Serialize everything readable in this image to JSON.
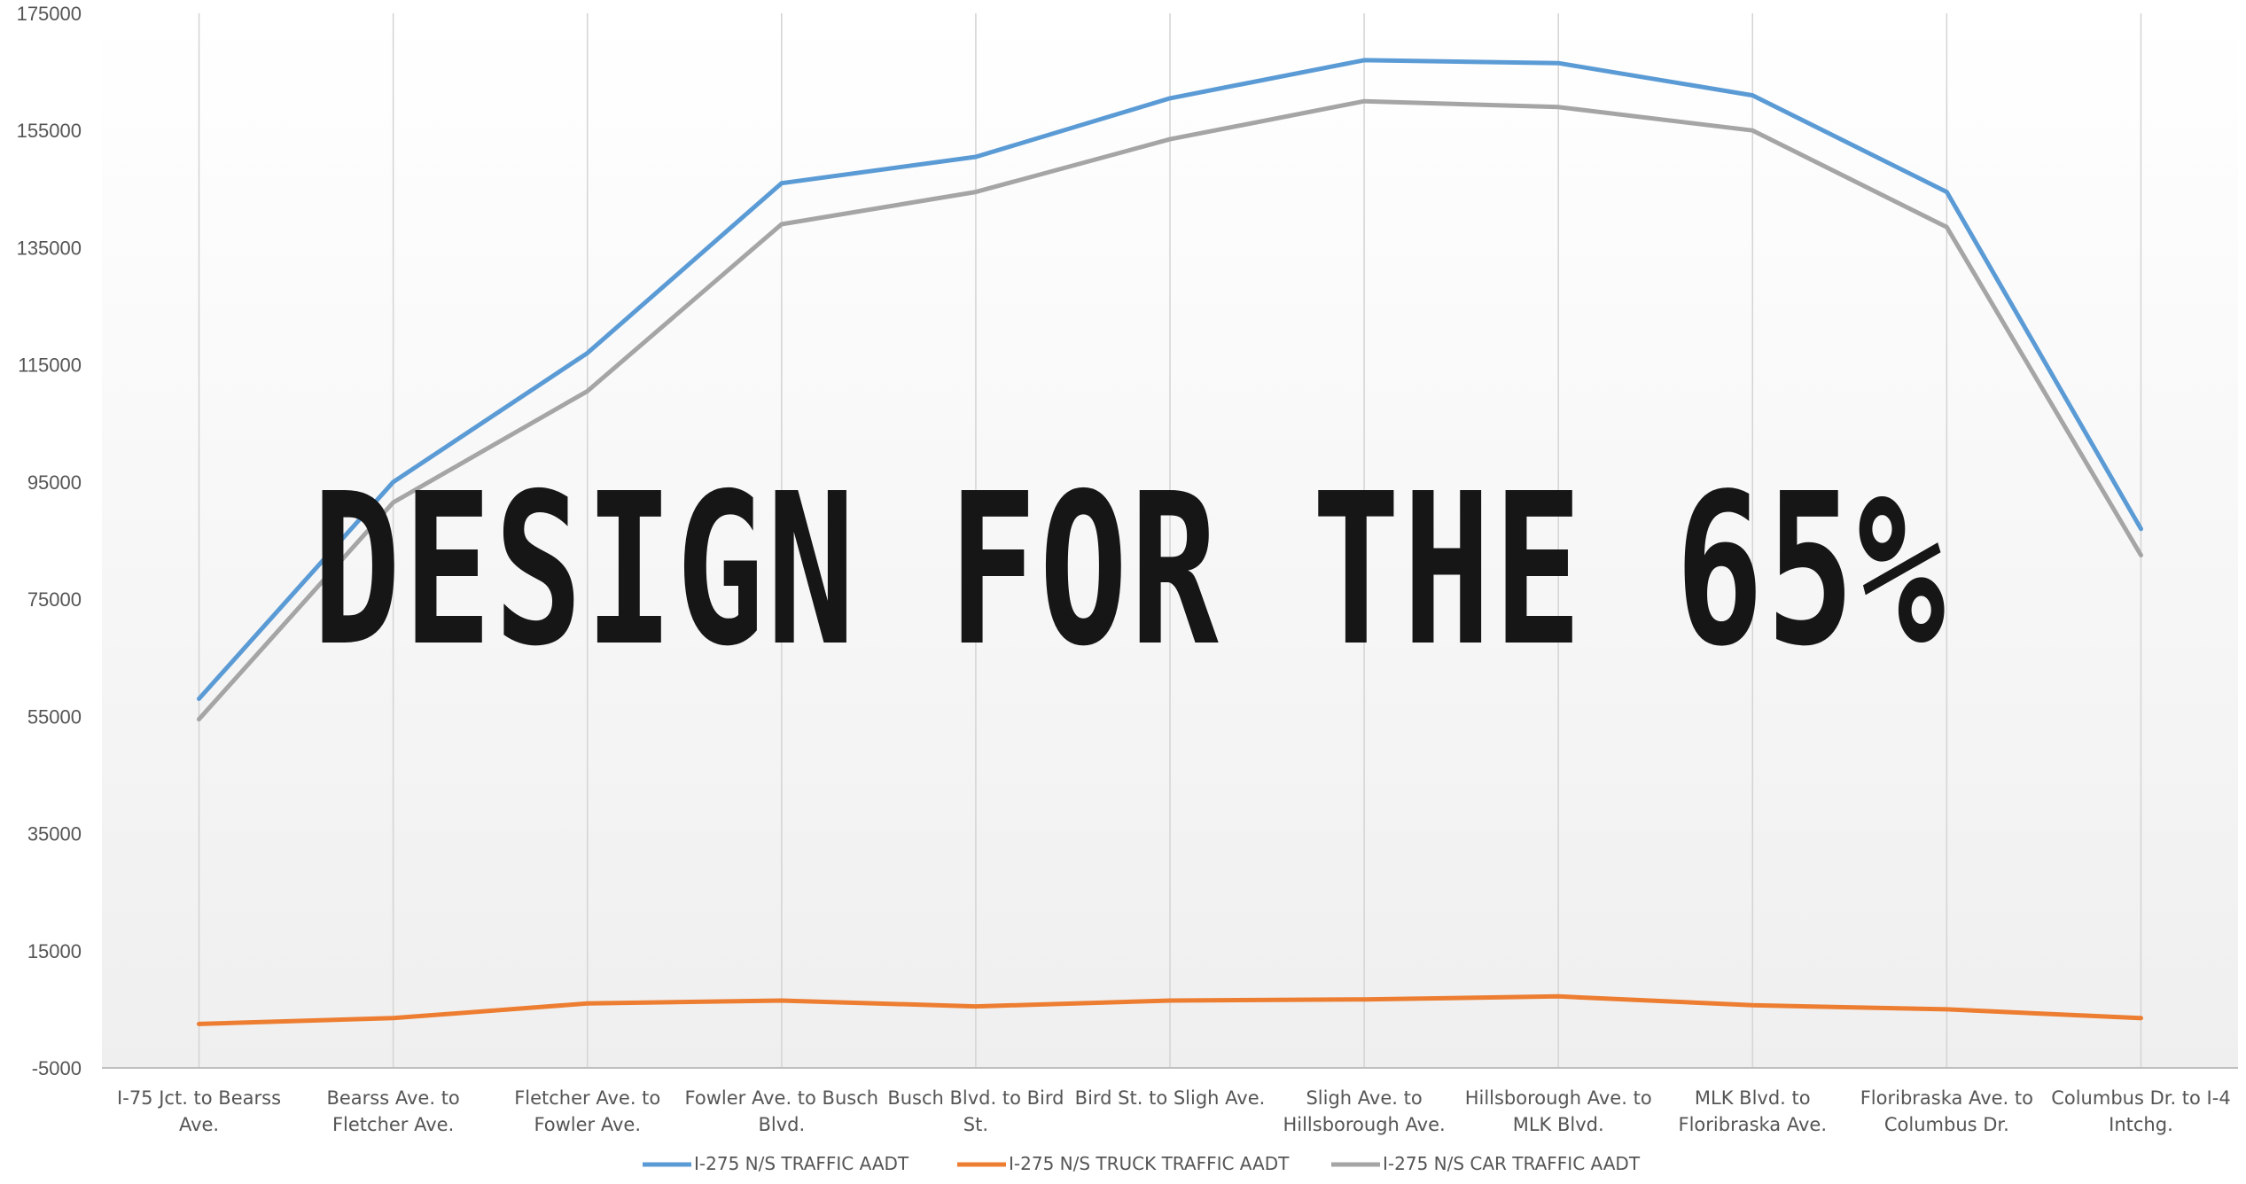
{
  "overlay": {
    "text": "DESIGN FOR THE 65%"
  },
  "chart_data": {
    "type": "line",
    "title": "",
    "xlabel": "",
    "ylabel": "",
    "ylim": [
      -5000,
      175000
    ],
    "yticks": [
      -5000,
      15000,
      35000,
      55000,
      75000,
      95000,
      115000,
      135000,
      155000,
      175000
    ],
    "grid": "vertical",
    "legend_position": "bottom",
    "categories": [
      [
        "I-75 Jct. to Bearss",
        "Ave."
      ],
      [
        "Bearss Ave. to",
        "Fletcher Ave."
      ],
      [
        "Fletcher Ave. to",
        "Fowler Ave."
      ],
      [
        "Fowler Ave. to Busch",
        "Blvd."
      ],
      [
        "Busch Blvd. to Bird",
        "St."
      ],
      [
        "Bird St. to Sligh Ave."
      ],
      [
        "Sligh Ave. to",
        "Hillsborough Ave."
      ],
      [
        "Hillsborough Ave. to",
        "MLK Blvd."
      ],
      [
        "MLK Blvd. to",
        "Floribraska Ave."
      ],
      [
        "Floribraska Ave. to",
        "Columbus Dr."
      ],
      [
        "Columbus Dr. to I-4",
        "Intchg."
      ]
    ],
    "series": [
      {
        "name": "I-275 N/S  TRAFFIC AADT",
        "color": "#5b9bd5",
        "values": [
          58000,
          95000,
          117000,
          146000,
          150500,
          160500,
          167000,
          166500,
          161000,
          144500,
          87000
        ]
      },
      {
        "name": "I-275 N/S TRUCK TRAFFIC AADT",
        "color": "#ed7d31",
        "values": [
          2500,
          3500,
          6000,
          6500,
          5500,
          6500,
          6700,
          7200,
          5700,
          5000,
          3500
        ]
      },
      {
        "name": "I-275 N/S CAR TRAFFIC AADT",
        "color": "#a5a5a5",
        "values": [
          54500,
          91500,
          110500,
          139000,
          144500,
          153500,
          160000,
          159000,
          155000,
          138500,
          82500
        ]
      }
    ]
  }
}
